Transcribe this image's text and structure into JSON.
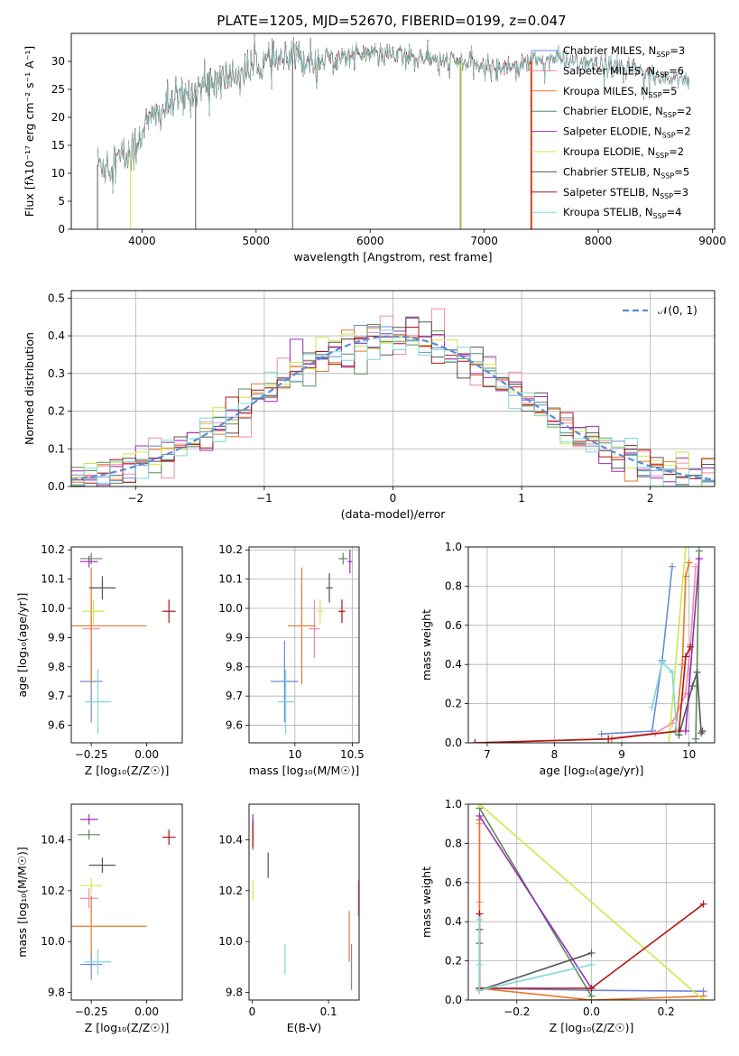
{
  "figure_title": "PLATE=1205, MJD=52670, FIBERID=0199, z=0.047",
  "colors": {
    "chabrier_miles": "#6b8ad8",
    "salpeter_miles": "#f08aa8",
    "kroupa_miles": "#e8762a",
    "chabrier_elodie": "#5e8a5e",
    "salpeter_elodie": "#9a2bb8",
    "kroupa_elodie": "#cfe84a",
    "chabrier_stelib": "#555555",
    "salpeter_stelib": "#b01515",
    "kroupa_stelib": "#7fd8d8",
    "normal_curve": "#5b8bd8",
    "grid": "#b0b0b0"
  },
  "chart_data": [
    {
      "id": "spectrum",
      "type": "line",
      "title": "PLATE=1205, MJD=52670, FIBERID=0199, z=0.047",
      "xlabel": "wavelength [Angstrom, rest frame]",
      "ylabel": "Flux [fλ10⁻¹⁷ erg cm⁻² s⁻¹ A⁻¹]",
      "xlim": [
        3380,
        9020
      ],
      "ylim": [
        0,
        35
      ],
      "xticks": [
        4000,
        5000,
        6000,
        7000,
        8000,
        9000
      ],
      "yticks": [
        0,
        5,
        10,
        15,
        20,
        25,
        30
      ],
      "grid": false,
      "legend_position": "right",
      "legend": [
        {
          "label": "Chabrier MILES, N",
          "sub": "SSP",
          "suffix": "=3",
          "color": "#6b8ad8"
        },
        {
          "label": "Salpeter MILES, N",
          "sub": "SSP",
          "suffix": "=6",
          "color": "#f08aa8"
        },
        {
          "label": "Kroupa MILES, N",
          "sub": "SSP",
          "suffix": "=5",
          "color": "#e8762a"
        },
        {
          "label": "Chabrier ELODIE, N",
          "sub": "SSP",
          "suffix": "=2",
          "color": "#5e8a5e"
        },
        {
          "label": "Salpeter ELODIE, N",
          "sub": "SSP",
          "suffix": "=2",
          "color": "#9a2bb8"
        },
        {
          "label": "Kroupa ELODIE, N",
          "sub": "SSP",
          "suffix": "=2",
          "color": "#cfe84a"
        },
        {
          "label": "Chabrier STELIB, N",
          "sub": "SSP",
          "suffix": "=5",
          "color": "#555555"
        },
        {
          "label": "Salpeter STELIB, N",
          "sub": "SSP",
          "suffix": "=3",
          "color": "#b01515"
        },
        {
          "label": "Kroupa STELIB, N",
          "sub": "SSP",
          "suffix": "=4",
          "color": "#7fd8d8"
        }
      ],
      "continuum": {
        "wavelength": [
          3610,
          3700,
          3800,
          3900,
          3950,
          4000,
          4100,
          4200,
          4300,
          4400,
          4500,
          4600,
          4700,
          4800,
          4900,
          5000,
          5200,
          5400,
          5600,
          5800,
          6000,
          6200,
          6400,
          6600,
          6800,
          7000,
          7200,
          7400,
          7600,
          7800,
          8000,
          8200,
          8400,
          8600,
          8800
        ],
        "flux": [
          11.5,
          12,
          12.5,
          13.5,
          15,
          18,
          20,
          21.5,
          23,
          24,
          25.5,
          26,
          27,
          27.5,
          28,
          29.5,
          30,
          30.5,
          30.5,
          31,
          31.5,
          31,
          31,
          30,
          30,
          29,
          29,
          30,
          30.5,
          30,
          29,
          29,
          28,
          27,
          27
        ]
      },
      "series_ranges": [
        {
          "name": "Chabrier MILES",
          "color": "#6b8ad8",
          "start": 3610,
          "end": 7420
        },
        {
          "name": "Salpeter MILES",
          "color": "#f08aa8",
          "start": 3610,
          "end": 7420
        },
        {
          "name": "Kroupa MILES",
          "color": "#e8762a",
          "start": 3610,
          "end": 7420
        },
        {
          "name": "Chabrier ELODIE",
          "color": "#5e8a5e",
          "start": 3900,
          "end": 6800
        },
        {
          "name": "Salpeter ELODIE",
          "color": "#9a2bb8",
          "start": 3900,
          "end": 6800
        },
        {
          "name": "Kroupa ELODIE",
          "color": "#cfe84a",
          "start": 3900,
          "end": 6800
        },
        {
          "name": "Chabrier STELIB",
          "color": "#555555",
          "start": 3610,
          "end": 8800
        },
        {
          "name": "Salpeter STELIB",
          "color": "#b01515",
          "start": 3610,
          "end": 8800
        },
        {
          "name": "Kroupa STELIB",
          "color": "#7fd8d8",
          "start": 3610,
          "end": 8800
        }
      ],
      "edge_drops": [
        {
          "x": 3610,
          "color": "#555555"
        },
        {
          "x": 3900,
          "color": "#cfe84a"
        },
        {
          "x": 4470,
          "color": "#555555"
        },
        {
          "x": 5320,
          "color": "#555555"
        },
        {
          "x": 6790,
          "color": "#5e8a5e"
        },
        {
          "x": 6800,
          "color": "#cfe84a"
        },
        {
          "x": 7410,
          "color": "#b01515"
        },
        {
          "x": 7420,
          "color": "#e8762a"
        }
      ]
    },
    {
      "id": "residual_hist",
      "type": "line",
      "xlabel": "(data-model)/error",
      "ylabel": "Normed distribution",
      "xlim": [
        -2.5,
        2.5
      ],
      "ylim": [
        0,
        0.52
      ],
      "xticks": [
        -2,
        -1,
        0,
        1,
        2
      ],
      "yticks": [
        0.0,
        0.1,
        0.2,
        0.3,
        0.4,
        0.5
      ],
      "grid": true,
      "legend": [
        {
          "label": "𝒩(0, 1)",
          "color": "#5b8bd8",
          "style": "dashed"
        }
      ],
      "legend_position": "top-right",
      "bin_width": 0.1,
      "bin_start": -2.5,
      "normal_curve": {
        "mean": 0,
        "sigma": 1
      }
    },
    {
      "id": "age_vs_Z",
      "type": "scatter",
      "xlabel": "Z [log₁₀(Z/Z☉)]",
      "ylabel": "age  [log₁₀(age/yr)]",
      "xlim": [
        -0.34,
        0.16
      ],
      "ylim": [
        9.54,
        10.21
      ],
      "xticks": [
        -0.25,
        0.0
      ],
      "xtick_labels": [
        "−0.25",
        "0.00"
      ],
      "yticks": [
        9.6,
        9.7,
        9.8,
        9.9,
        10.0,
        10.1,
        10.2
      ],
      "grid": false,
      "points": [
        {
          "x": -0.25,
          "xerr": 0.05,
          "y": 9.75,
          "yerr": 0.14,
          "color": "#6b8ad8"
        },
        {
          "x": -0.25,
          "xerr": 0.04,
          "y": 9.93,
          "yerr": 0.1,
          "color": "#f08aa8"
        },
        {
          "x": -0.25,
          "xerr": 0.25,
          "y": 9.94,
          "yerr": 0.2,
          "color": "#e8762a"
        },
        {
          "x": -0.25,
          "xerr": 0.05,
          "y": 10.17,
          "yerr": 0.02,
          "color": "#5e8a5e"
        },
        {
          "x": -0.26,
          "xerr": 0.04,
          "y": 10.16,
          "yerr": 0.02,
          "color": "#9a2bb8"
        },
        {
          "x": -0.24,
          "xerr": 0.05,
          "y": 9.99,
          "yerr": 0.04,
          "color": "#cfe84a"
        },
        {
          "x": -0.2,
          "xerr": 0.06,
          "y": 10.07,
          "yerr": 0.04,
          "color": "#555555"
        },
        {
          "x": 0.1,
          "xerr": 0.03,
          "y": 9.99,
          "yerr": 0.04,
          "color": "#b01515"
        },
        {
          "x": -0.22,
          "xerr": 0.06,
          "y": 9.68,
          "yerr": 0.11,
          "color": "#7fd8d8"
        }
      ]
    },
    {
      "id": "age_vs_mass",
      "type": "scatter",
      "xlabel": "mass [log₁₀(M/M☉)]",
      "ylabel": "",
      "xlim": [
        9.6,
        10.56
      ],
      "ylim": [
        9.54,
        10.21
      ],
      "xticks": [
        10.0,
        10.5
      ],
      "yticks": [
        9.6,
        9.7,
        9.8,
        9.9,
        10.0,
        10.1,
        10.2
      ],
      "grid": true,
      "points": [
        {
          "x": 9.91,
          "xerr": 0.12,
          "y": 9.75,
          "yerr": 0.14,
          "color": "#6b8ad8"
        },
        {
          "x": 10.17,
          "xerr": 0.05,
          "y": 9.93,
          "yerr": 0.1,
          "color": "#f08aa8"
        },
        {
          "x": 10.06,
          "xerr": 0.12,
          "y": 9.94,
          "yerr": 0.2,
          "color": "#e8762a"
        },
        {
          "x": 10.42,
          "xerr": 0.04,
          "y": 10.17,
          "yerr": 0.02,
          "color": "#5e8a5e"
        },
        {
          "x": 10.48,
          "xerr": 0.02,
          "y": 10.16,
          "yerr": 0.04,
          "color": "#9a2bb8"
        },
        {
          "x": 10.22,
          "xerr": 0.03,
          "y": 9.99,
          "yerr": 0.04,
          "color": "#cfe84a"
        },
        {
          "x": 10.3,
          "xerr": 0.03,
          "y": 10.07,
          "yerr": 0.05,
          "color": "#555555"
        },
        {
          "x": 10.41,
          "xerr": 0.03,
          "y": 9.99,
          "yerr": 0.04,
          "color": "#b01515"
        },
        {
          "x": 9.92,
          "xerr": 0.07,
          "y": 9.68,
          "yerr": 0.11,
          "color": "#7fd8d8"
        }
      ]
    },
    {
      "id": "mass_weight_vs_age",
      "type": "line",
      "xlabel": "age  [log₁₀(age/yr)]",
      "ylabel": "mass weight",
      "xlim": [
        6.72,
        10.38
      ],
      "ylim": [
        0,
        1
      ],
      "xticks": [
        7,
        8,
        9,
        10
      ],
      "yticks": [
        0.0,
        0.2,
        0.4,
        0.6,
        0.8,
        1.0
      ],
      "grid": true,
      "series": [
        {
          "name": "Chabrier MILES",
          "color": "#6b8ad8",
          "x": [
            8.7,
            9.45,
            9.6,
            9.75
          ],
          "y": [
            0.045,
            0.06,
            0.42,
            0.9
          ]
        },
        {
          "name": "Salpeter MILES",
          "color": "#f08aa8",
          "x": [
            8.8,
            9.5,
            9.75,
            9.95,
            10.02,
            10.1
          ],
          "y": [
            0.02,
            0.05,
            0.1,
            0.25,
            0.5,
            0.9
          ]
        },
        {
          "name": "Kroupa MILES",
          "color": "#e8762a",
          "x": [
            6.82,
            8.85,
            9.8,
            9.9,
            9.95,
            10.0
          ],
          "y": [
            0.0,
            0.02,
            0.06,
            0.4,
            0.85,
            0.92
          ]
        },
        {
          "name": "Chabrier ELODIE",
          "color": "#5e8a5e",
          "x": [
            10.1,
            10.15
          ],
          "y": [
            0.02,
            0.98
          ]
        },
        {
          "name": "Salpeter ELODIE",
          "color": "#9a2bb8",
          "x": [
            9.95,
            10.15
          ],
          "y": [
            0.06,
            0.94
          ]
        },
        {
          "name": "Kroupa ELODIE",
          "color": "#cfe84a",
          "x": [
            9.7,
            9.95
          ],
          "y": [
            0.0,
            1.0
          ]
        },
        {
          "name": "Chabrier STELIB",
          "color": "#555555",
          "x": [
            9.85,
            10.05,
            10.12,
            10.18,
            10.2
          ],
          "y": [
            0.04,
            0.29,
            0.36,
            0.05,
            0.06
          ]
        },
        {
          "name": "Salpeter STELIB",
          "color": "#b01515",
          "x": [
            6.82,
            8.8,
            9.85,
            9.95,
            10.02
          ],
          "y": [
            0.0,
            0.02,
            0.06,
            0.44,
            0.49
          ]
        },
        {
          "name": "Kroupa STELIB",
          "color": "#7fd8d8",
          "x": [
            9.45,
            9.6,
            9.75,
            9.82
          ],
          "y": [
            0.18,
            0.41,
            0.36,
            0.05
          ]
        }
      ]
    },
    {
      "id": "mass_vs_Z",
      "type": "scatter",
      "xlabel": "Z [log₁₀(Z/Z☉)]",
      "ylabel": "mass [log₁₀(M/M☉)]",
      "xlim": [
        -0.34,
        0.16
      ],
      "ylim": [
        9.77,
        10.54
      ],
      "xticks": [
        -0.25,
        0.0
      ],
      "xtick_labels": [
        "−0.25",
        "0.00"
      ],
      "yticks": [
        9.8,
        10.0,
        10.2,
        10.4
      ],
      "grid": false,
      "points": [
        {
          "x": -0.25,
          "xerr": 0.05,
          "y": 9.91,
          "yerr": 0.06,
          "color": "#6b8ad8"
        },
        {
          "x": -0.26,
          "xerr": 0.04,
          "y": 10.17,
          "yerr": 0.04,
          "color": "#f08aa8"
        },
        {
          "x": -0.25,
          "xerr": 0.25,
          "y": 10.06,
          "yerr": 0.12,
          "color": "#e8762a"
        },
        {
          "x": -0.26,
          "xerr": 0.05,
          "y": 10.42,
          "yerr": 0.02,
          "color": "#5e8a5e"
        },
        {
          "x": -0.26,
          "xerr": 0.04,
          "y": 10.48,
          "yerr": 0.02,
          "color": "#9a2bb8"
        },
        {
          "x": -0.25,
          "xerr": 0.05,
          "y": 10.22,
          "yerr": 0.03,
          "color": "#cfe84a"
        },
        {
          "x": -0.2,
          "xerr": 0.06,
          "y": 10.3,
          "yerr": 0.03,
          "color": "#555555"
        },
        {
          "x": 0.1,
          "xerr": 0.03,
          "y": 10.41,
          "yerr": 0.03,
          "color": "#b01515"
        },
        {
          "x": -0.22,
          "xerr": 0.06,
          "y": 9.92,
          "yerr": 0.05,
          "color": "#7fd8d8"
        }
      ]
    },
    {
      "id": "mass_vs_ebv",
      "type": "scatter",
      "xlabel": "E(B-V)",
      "ylabel": "",
      "xlim": [
        -0.004,
        0.14
      ],
      "ylim": [
        9.77,
        10.54
      ],
      "xticks": [
        0.0,
        0.1
      ],
      "yticks": [
        9.8,
        10.0,
        10.2,
        10.4
      ],
      "grid": false,
      "points": [
        {
          "x": 0.13,
          "y": 9.9,
          "yerr": 0.09,
          "color": "#6b8ad8"
        },
        {
          "x": 0.139,
          "y": 10.17,
          "yerr": 0.07,
          "color": "#f08aa8"
        },
        {
          "x": 0.127,
          "y": 10.02,
          "yerr": 0.1,
          "color": "#e8762a"
        },
        {
          "x": 0.001,
          "y": 10.42,
          "yerr": 0.06,
          "color": "#5e8a5e"
        },
        {
          "x": 0.001,
          "y": 10.45,
          "yerr": 0.05,
          "color": "#9a2bb8"
        },
        {
          "x": 0.001,
          "y": 10.2,
          "yerr": 0.04,
          "color": "#cfe84a"
        },
        {
          "x": 0.021,
          "y": 10.3,
          "yerr": 0.05,
          "color": "#555555"
        },
        {
          "x": 0.001,
          "y": 10.42,
          "yerr": 0.05,
          "color": "#b01515"
        },
        {
          "x": 0.043,
          "y": 9.93,
          "yerr": 0.06,
          "color": "#7fd8d8"
        }
      ]
    },
    {
      "id": "mass_weight_vs_Z",
      "type": "line",
      "xlabel": "Z [log₁₀(Z/Z☉)]",
      "ylabel": "mass weight",
      "xlim": [
        -0.33,
        0.33
      ],
      "ylim": [
        0,
        1
      ],
      "xticks": [
        -0.2,
        0.0,
        0.2
      ],
      "xtick_labels": [
        "−0.2",
        "0.0",
        "0.2"
      ],
      "yticks": [
        0.0,
        0.2,
        0.4,
        0.6,
        0.8,
        1.0
      ],
      "grid": true,
      "series": [
        {
          "name": "Chabrier MILES",
          "color": "#6b8ad8",
          "x": [
            -0.3,
            0.0,
            0.3
          ],
          "y": [
            0.06,
            0.05,
            0.045
          ]
        },
        {
          "name": "Salpeter MILES",
          "color": "#f08aa8",
          "x": [
            -0.3,
            -0.3,
            -0.3
          ],
          "y": [
            0.9,
            0.5,
            0.05
          ]
        },
        {
          "name": "Kroupa MILES",
          "color": "#e8762a",
          "x": [
            -0.3,
            -0.3,
            0.0,
            0.3
          ],
          "y": [
            0.92,
            0.06,
            0.0,
            0.02
          ]
        },
        {
          "name": "Chabrier ELODIE",
          "color": "#5e8a5e",
          "x": [
            -0.3,
            0.0
          ],
          "y": [
            0.98,
            0.02
          ]
        },
        {
          "name": "Salpeter ELODIE",
          "color": "#9a2bb8",
          "x": [
            -0.3,
            0.0
          ],
          "y": [
            0.94,
            0.06
          ]
        },
        {
          "name": "Kroupa ELODIE",
          "color": "#cfe84a",
          "x": [
            -0.3,
            0.3
          ],
          "y": [
            1.0,
            0.0
          ]
        },
        {
          "name": "Chabrier STELIB",
          "color": "#555555",
          "x": [
            -0.3,
            -0.3,
            -0.3,
            0.0
          ],
          "y": [
            0.36,
            0.29,
            0.05,
            0.24
          ]
        },
        {
          "name": "Salpeter STELIB",
          "color": "#b01515",
          "x": [
            -0.3,
            -0.3,
            0.0,
            0.3
          ],
          "y": [
            0.44,
            0.06,
            0.06,
            0.49
          ]
        },
        {
          "name": "Kroupa STELIB",
          "color": "#7fd8d8",
          "x": [
            -0.3,
            -0.3,
            -0.3,
            0.0
          ],
          "y": [
            0.41,
            0.18,
            0.05,
            0.18
          ]
        }
      ]
    }
  ]
}
